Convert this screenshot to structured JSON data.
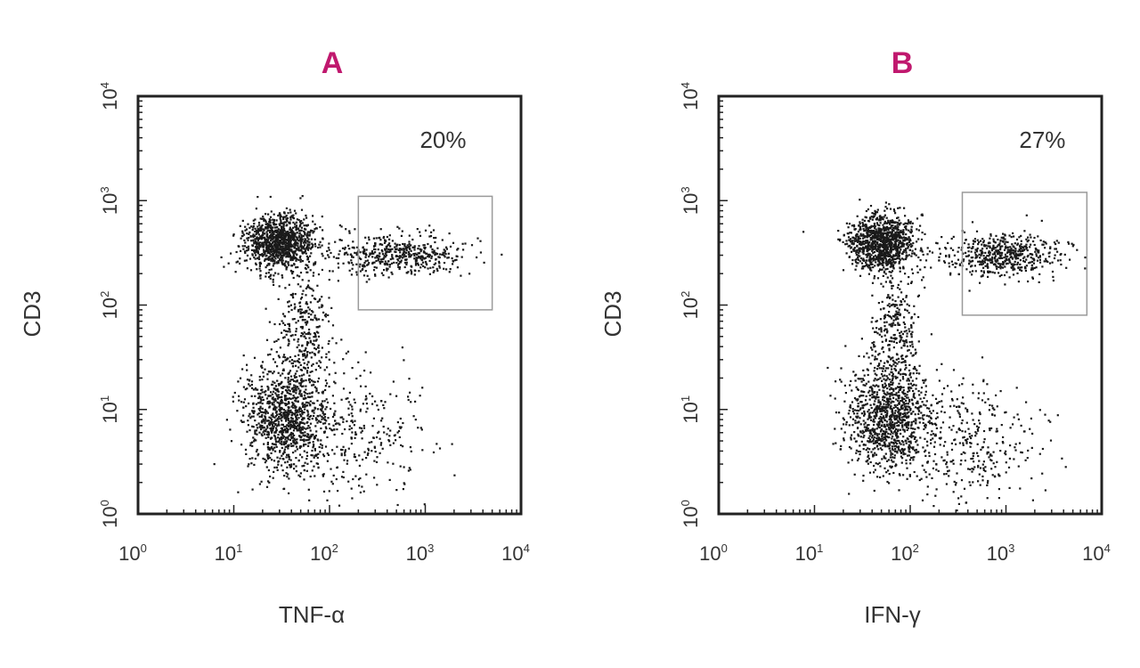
{
  "chart_data": [
    {
      "type": "scatter",
      "panel_label": "A",
      "xlabel": "TNF-α",
      "ylabel": "CD3",
      "x_scale": "log",
      "y_scale": "log",
      "xlim": [
        1,
        10000
      ],
      "ylim": [
        1,
        10000
      ],
      "x_ticks": [
        {
          "base": "10",
          "exp": "0"
        },
        {
          "base": "10",
          "exp": "1"
        },
        {
          "base": "10",
          "exp": "2"
        },
        {
          "base": "10",
          "exp": "3"
        },
        {
          "base": "10",
          "exp": "4"
        }
      ],
      "y_ticks": [
        {
          "base": "10",
          "exp": "0"
        },
        {
          "base": "10",
          "exp": "1"
        },
        {
          "base": "10",
          "exp": "2"
        },
        {
          "base": "10",
          "exp": "3"
        },
        {
          "base": "10",
          "exp": "4"
        }
      ],
      "gate": {
        "x_range": [
          200,
          5000
        ],
        "y_range": [
          90,
          1100
        ],
        "label": "20%"
      },
      "populations": [
        {
          "center": [
            30,
            400
          ],
          "spread": [
            0.18,
            0.13
          ],
          "count": 1100
        },
        {
          "center": [
            500,
            300
          ],
          "spread": [
            0.35,
            0.1
          ],
          "count": 500
        },
        {
          "center": [
            35,
            8
          ],
          "spread": [
            0.22,
            0.25
          ],
          "count": 1000
        },
        {
          "center": [
            200,
            6
          ],
          "spread": [
            0.35,
            0.3
          ],
          "count": 300
        },
        {
          "center": [
            50,
            50
          ],
          "spread": [
            0.15,
            0.35
          ],
          "count": 350
        }
      ],
      "grid": false,
      "legend": "none"
    },
    {
      "type": "scatter",
      "panel_label": "B",
      "xlabel": "IFN-γ",
      "ylabel": "CD3",
      "x_scale": "log",
      "y_scale": "log",
      "xlim": [
        1,
        10000
      ],
      "ylim": [
        1,
        10000
      ],
      "x_ticks": [
        {
          "base": "10",
          "exp": "0"
        },
        {
          "base": "10",
          "exp": "1"
        },
        {
          "base": "10",
          "exp": "2"
        },
        {
          "base": "10",
          "exp": "3"
        },
        {
          "base": "10",
          "exp": "4"
        }
      ],
      "y_ticks": [
        {
          "base": "10",
          "exp": "0"
        },
        {
          "base": "10",
          "exp": "1"
        },
        {
          "base": "10",
          "exp": "2"
        },
        {
          "base": "10",
          "exp": "3"
        },
        {
          "base": "10",
          "exp": "4"
        }
      ],
      "gate": {
        "x_range": [
          350,
          7000
        ],
        "y_range": [
          80,
          1200
        ],
        "label": "27%"
      },
      "populations": [
        {
          "center": [
            50,
            400
          ],
          "spread": [
            0.17,
            0.13
          ],
          "count": 1100
        },
        {
          "center": [
            900,
            300
          ],
          "spread": [
            0.3,
            0.1
          ],
          "count": 550
        },
        {
          "center": [
            60,
            8
          ],
          "spread": [
            0.22,
            0.25
          ],
          "count": 1000
        },
        {
          "center": [
            400,
            5
          ],
          "spread": [
            0.35,
            0.3
          ],
          "count": 350
        },
        {
          "center": [
            70,
            50
          ],
          "spread": [
            0.12,
            0.35
          ],
          "count": 350
        }
      ],
      "grid": false,
      "legend": "none"
    }
  ],
  "colors": {
    "panel_letter": "#c0186e",
    "points": "#1a1a1a",
    "axes": "#222222",
    "gate": "#9a9a9a"
  }
}
